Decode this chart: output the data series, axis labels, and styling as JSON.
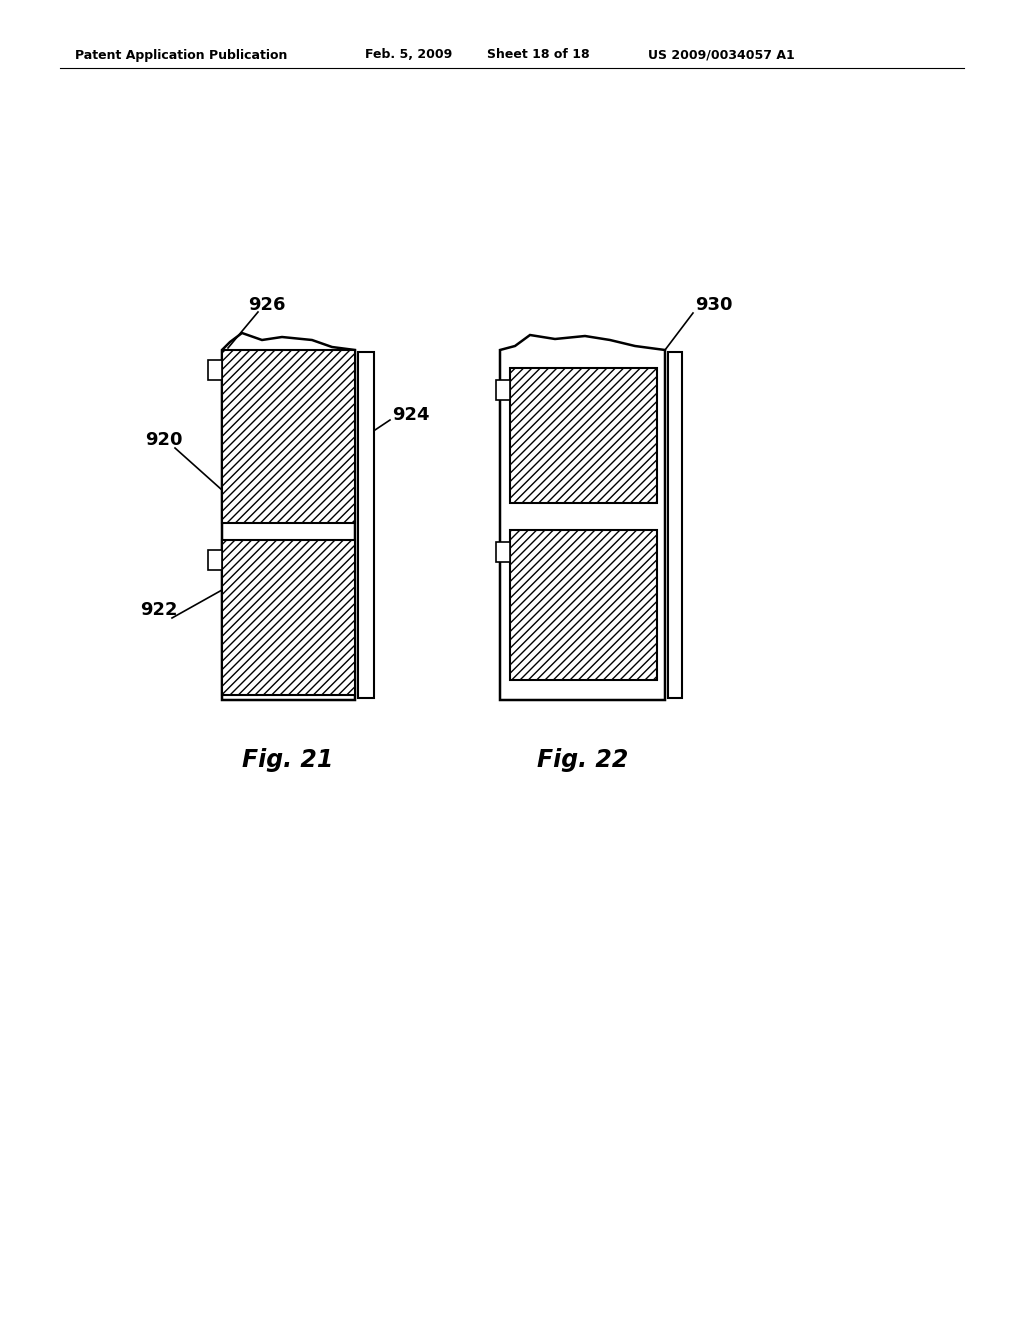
{
  "bg_color": "#ffffff",
  "header_text": "Patent Application Publication",
  "header_date": "Feb. 5, 2009",
  "header_sheet": "Sheet 18 of 18",
  "header_patent": "US 2009/0034057 A1",
  "fig21_label": "Fig. 21",
  "fig22_label": "Fig. 22",
  "label_920": "920",
  "label_922": "922",
  "label_924": "924",
  "label_926": "926",
  "label_930": "930"
}
